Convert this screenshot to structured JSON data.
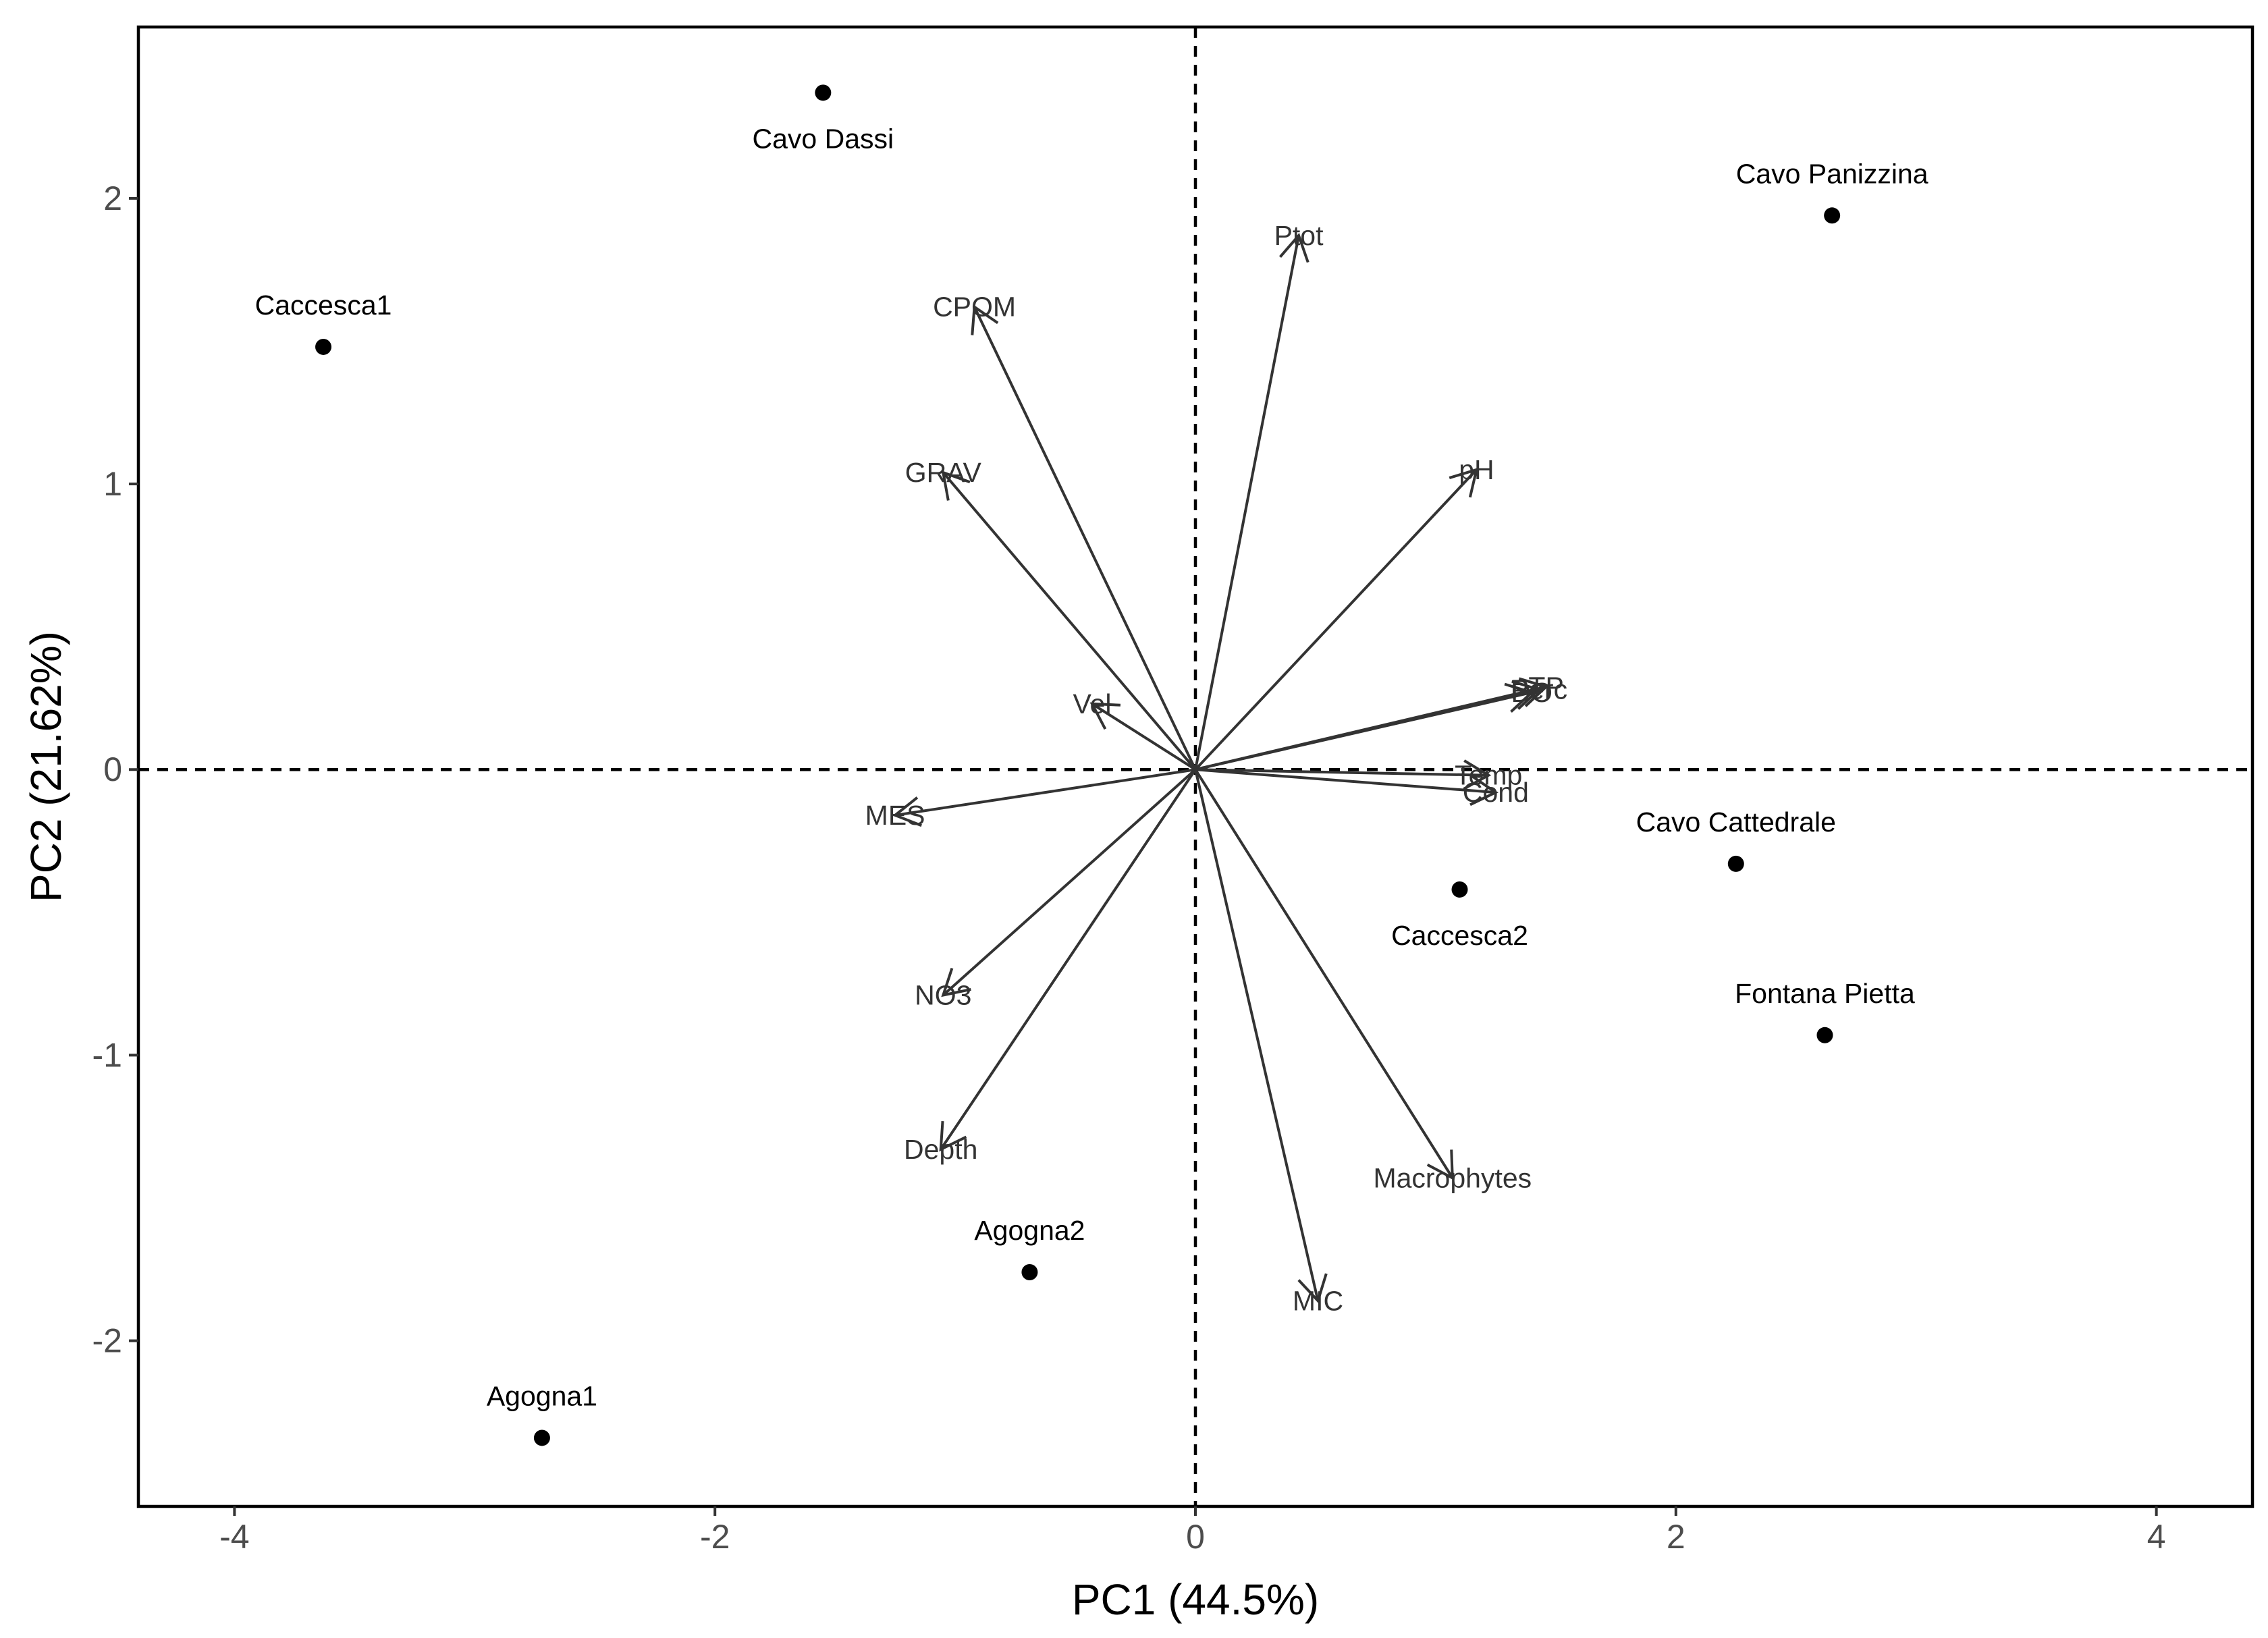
{
  "chart_data": {
    "type": "scatter",
    "subtype": "pca-biplot",
    "xlabel": "PC1 (44.5%)",
    "ylabel": "PC2 (21.62%)",
    "xlim": [
      -4.4,
      4.4
    ],
    "ylim": [
      -2.58,
      2.6
    ],
    "xticks": [
      -4,
      -2,
      0,
      2,
      4
    ],
    "yticks": [
      -2,
      -1,
      0,
      1,
      2
    ],
    "grid": false,
    "reference_lines": {
      "x": 0,
      "y": 0,
      "style": "dashed"
    },
    "sites": [
      {
        "name": "Cavo Dassi",
        "x": -1.55,
        "y": 2.37,
        "label_pos": "below"
      },
      {
        "name": "Cavo Panizzina",
        "x": 2.65,
        "y": 1.94,
        "label_pos": "above"
      },
      {
        "name": "Caccesca1",
        "x": -3.63,
        "y": 1.48,
        "label_pos": "above"
      },
      {
        "name": "Cavo Cattedrale",
        "x": 2.25,
        "y": -0.33,
        "label_pos": "above"
      },
      {
        "name": "Caccesca2",
        "x": 1.1,
        "y": -0.42,
        "label_pos": "below"
      },
      {
        "name": "Fontana Pietta",
        "x": 2.62,
        "y": -0.93,
        "label_pos": "above"
      },
      {
        "name": "Agogna2",
        "x": -0.69,
        "y": -1.76,
        "label_pos": "above"
      },
      {
        "name": "Agogna1",
        "x": -2.72,
        "y": -2.34,
        "label_pos": "above"
      }
    ],
    "variables": [
      {
        "name": "Ptot",
        "x": 0.43,
        "y": 1.87
      },
      {
        "name": "CPOM",
        "x": -0.92,
        "y": 1.62
      },
      {
        "name": "GRAV",
        "x": -1.05,
        "y": 1.04
      },
      {
        "name": "pH",
        "x": 1.17,
        "y": 1.05
      },
      {
        "name": "Vel",
        "x": -0.43,
        "y": 0.23
      },
      {
        "name": "DO",
        "x": 1.4,
        "y": 0.27
      },
      {
        "name": "Perc",
        "x": 1.43,
        "y": 0.28
      },
      {
        "name": "TP",
        "x": 1.46,
        "y": 0.29
      },
      {
        "name": "Temp",
        "x": 1.22,
        "y": -0.02
      },
      {
        "name": "Cond",
        "x": 1.25,
        "y": -0.08
      },
      {
        "name": "MES",
        "x": -1.25,
        "y": -0.16
      },
      {
        "name": "NO3",
        "x": -1.05,
        "y": -0.79
      },
      {
        "name": "Depth",
        "x": -1.06,
        "y": -1.33
      },
      {
        "name": "Macrophytes",
        "x": 1.07,
        "y": -1.43
      },
      {
        "name": "MIC",
        "x": 0.51,
        "y": -1.86
      }
    ]
  }
}
